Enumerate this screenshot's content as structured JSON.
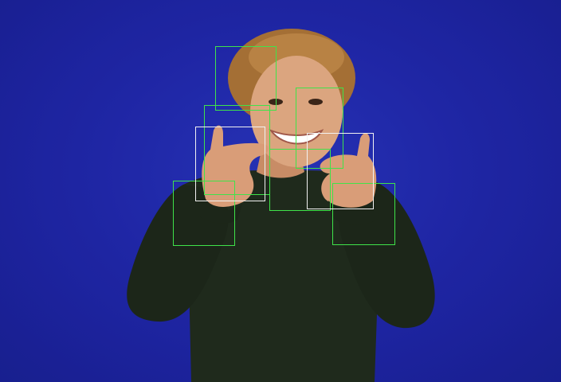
{
  "image": {
    "subject": "person",
    "background_color": "#2129b0",
    "shirt_color": "#1f2a1c",
    "skin_color": "#d8a07a",
    "hair_color": "#b07a3a"
  },
  "detection_boxes": [
    {
      "label": "box-1",
      "color": "#3fe34a"
    },
    {
      "label": "box-2",
      "color": "#3fe34a"
    },
    {
      "label": "box-3",
      "color": "#3fe34a"
    },
    {
      "label": "box-4",
      "color": "#3fe34a"
    },
    {
      "label": "box-5",
      "color": "#3fe34a"
    },
    {
      "label": "box-6",
      "color": "#3fe34a"
    },
    {
      "label": "box-7",
      "color": "#3fe34a"
    },
    {
      "label": "box-8",
      "color": "#f2f2f2"
    },
    {
      "label": "box-9",
      "color": "#f2f2f2"
    }
  ]
}
